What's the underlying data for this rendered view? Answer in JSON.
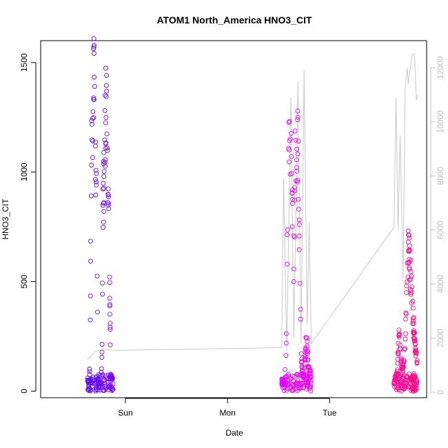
{
  "chart_data": {
    "type": "scatter",
    "title": "ATOM1 North_America HNO3_CIT",
    "xlabel": "Date",
    "ylabel": "HNO3_CIT",
    "x_ticks": [
      "Sun",
      "Mon",
      "Tue"
    ],
    "y_ticks": [
      0,
      500,
      1000,
      1500
    ],
    "y_right_ticks": [
      0,
      2000,
      4000,
      6000,
      8000,
      10000,
      12000
    ],
    "ylim": [
      -30,
      1600
    ],
    "ylim_right": [
      -200,
      13000
    ],
    "x_units": "days since Saturday 00:00 (Sun=1, Mon=2, Tue=3)",
    "xlim": [
      0.17,
      3.95
    ],
    "colors": {
      "axis": "#000000",
      "right_axis": "#c0c0c0",
      "line": "#c8c8c8",
      "series_start": "#6a00ff",
      "series_end": "#ff0066"
    },
    "series": [
      {
        "name": "HNO3_CIT points",
        "segments": [
          {
            "x": [
              0.63,
              0.88
            ],
            "color_from": "#5e0cf0",
            "color_to": "#7a08ff",
            "profile": [
              [
                0,
                60
              ],
              [
                0.05,
                20
              ],
              [
                0.1,
                180
              ],
              [
                0.12,
                900
              ],
              [
                0.16,
                1200
              ],
              [
                0.2,
                1350
              ],
              [
                0.23,
                1500
              ],
              [
                0.26,
                1580
              ],
              [
                0.3,
                1120
              ],
              [
                0.34,
                1000
              ],
              [
                0.37,
                760
              ],
              [
                0.4,
                60
              ],
              [
                0.45,
                20
              ],
              [
                0.52,
                40
              ],
              [
                0.56,
                160
              ],
              [
                0.6,
                900
              ],
              [
                0.64,
                1100
              ],
              [
                0.67,
                1200
              ],
              [
                0.7,
                1450
              ],
              [
                0.73,
                1540
              ],
              [
                0.76,
                1250
              ],
              [
                0.8,
                980
              ],
              [
                0.85,
                720
              ],
              [
                0.9,
                80
              ],
              [
                1.0,
                60
              ]
            ]
          },
          {
            "x": [
              2.53,
              2.82
            ],
            "color_from": "#e300ff",
            "color_to": "#f000f2",
            "profile": [
              [
                0,
                40
              ],
              [
                0.05,
                30
              ],
              [
                0.1,
                80
              ],
              [
                0.15,
                200
              ],
              [
                0.2,
                900
              ],
              [
                0.25,
                1280
              ],
              [
                0.28,
                1330
              ],
              [
                0.33,
                1100
              ],
              [
                0.38,
                900
              ],
              [
                0.42,
                600
              ],
              [
                0.46,
                1250
              ],
              [
                0.5,
                1300
              ],
              [
                0.56,
                1200
              ],
              [
                0.6,
                800
              ],
              [
                0.66,
                200
              ],
              [
                0.72,
                60
              ],
              [
                0.78,
                120
              ],
              [
                0.84,
                300
              ],
              [
                0.9,
                120
              ],
              [
                1.0,
                80
              ]
            ]
          },
          {
            "x": [
              3.63,
              3.86
            ],
            "color_from": "#ff0aa0",
            "color_to": "#ff0080",
            "profile": [
              [
                0,
                40
              ],
              [
                0.08,
                60
              ],
              [
                0.15,
                120
              ],
              [
                0.22,
                300
              ],
              [
                0.28,
                180
              ],
              [
                0.36,
                90
              ],
              [
                0.45,
                200
              ],
              [
                0.55,
                500
              ],
              [
                0.62,
                760
              ],
              [
                0.68,
                650
              ],
              [
                0.74,
                520
              ],
              [
                0.8,
                400
              ],
              [
                0.88,
                250
              ],
              [
                0.94,
                180
              ],
              [
                1.0,
                150
              ]
            ]
          }
        ]
      },
      {
        "name": "HNO3_CIT line (right axis)",
        "x": [
          0.63,
          0.7,
          0.8,
          0.88,
          2.53,
          2.55,
          2.58,
          2.62,
          2.65,
          2.69,
          2.72,
          2.75,
          2.78,
          2.8,
          2.82,
          3.63,
          3.65,
          3.67,
          3.69,
          3.72,
          3.74,
          3.76,
          3.77,
          3.79,
          3.81,
          3.83,
          3.85,
          3.86
        ],
        "y": [
          1200,
          1500,
          1600,
          1550,
          1650,
          7900,
          1500,
          10900,
          2000,
          11500,
          1800,
          11900,
          2500,
          6300,
          1800,
          6100,
          10900,
          6000,
          9500,
          4200,
          11300,
          12000,
          11400,
          12000,
          12500,
          12500,
          10800,
          11000
        ]
      }
    ]
  }
}
